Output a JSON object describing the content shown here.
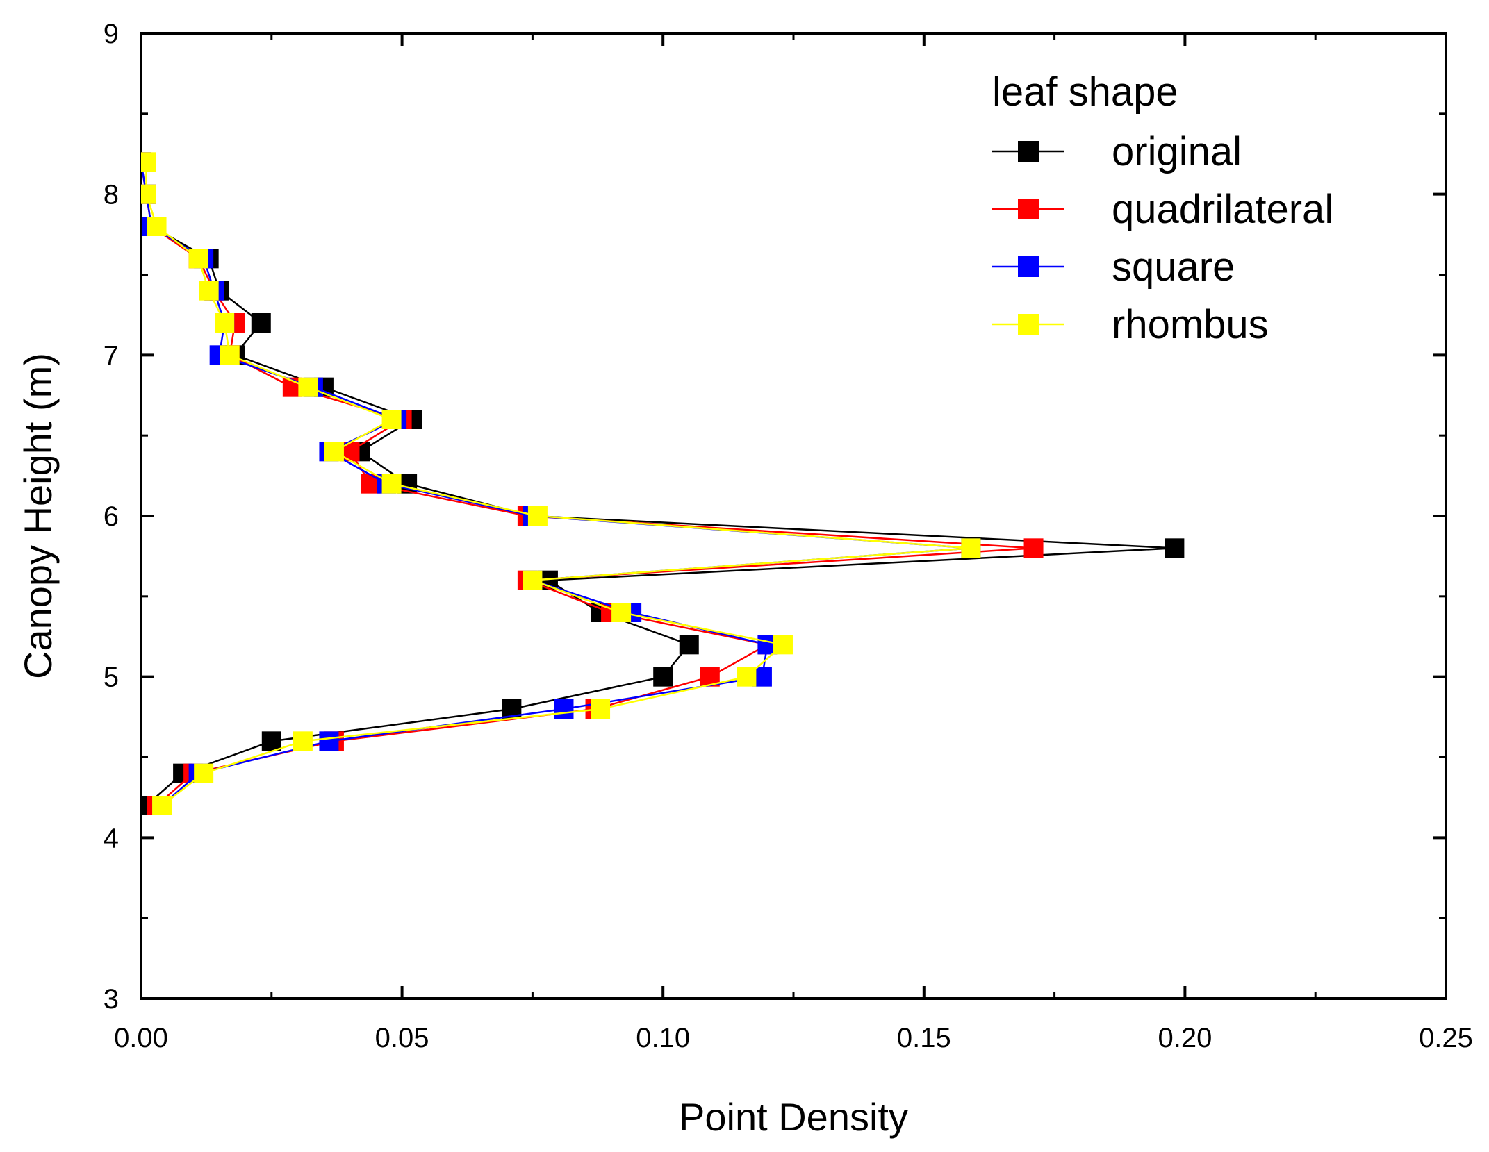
{
  "chart_data": {
    "type": "line",
    "title": "",
    "xlabel": "Point Density",
    "ylabel": "Canopy Height (m)",
    "xlim": [
      0,
      0.25
    ],
    "ylim": [
      3,
      9
    ],
    "xticks": [
      0.0,
      0.05,
      0.1,
      0.15,
      0.2,
      0.25
    ],
    "xtick_labels": [
      "0.00",
      "0.05",
      "0.10",
      "0.15",
      "0.20",
      "0.25"
    ],
    "yticks": [
      3,
      4,
      5,
      6,
      7,
      8,
      9
    ],
    "ytick_labels": [
      "3",
      "4",
      "5",
      "6",
      "7",
      "8",
      "9"
    ],
    "grid": false,
    "legend": {
      "title": "leaf shape",
      "position": "top-right"
    },
    "series": [
      {
        "name": "original",
        "color": "#000000",
        "points": [
          [
            0.001,
            4.2
          ],
          [
            0.008,
            4.4
          ],
          [
            0.025,
            4.6
          ],
          [
            0.071,
            4.8
          ],
          [
            0.1,
            5.0
          ],
          [
            0.105,
            5.2
          ],
          [
            0.088,
            5.4
          ],
          [
            0.078,
            5.6
          ],
          [
            0.198,
            5.8
          ],
          [
            0.075,
            6.0
          ],
          [
            0.051,
            6.2
          ],
          [
            0.042,
            6.4
          ],
          [
            0.052,
            6.6
          ],
          [
            0.035,
            6.8
          ],
          [
            0.018,
            7.0
          ],
          [
            0.023,
            7.2
          ],
          [
            0.015,
            7.4
          ],
          [
            0.013,
            7.6
          ],
          [
            0.002,
            7.8
          ]
        ]
      },
      {
        "name": "quadrilateral",
        "color": "#ff0000",
        "points": [
          [
            0.003,
            4.2
          ],
          [
            0.01,
            4.4
          ],
          [
            0.037,
            4.6
          ],
          [
            0.087,
            4.8
          ],
          [
            0.109,
            5.0
          ],
          [
            0.12,
            5.2
          ],
          [
            0.09,
            5.4
          ],
          [
            0.074,
            5.6
          ],
          [
            0.171,
            5.8
          ],
          [
            0.074,
            6.0
          ],
          [
            0.044,
            6.2
          ],
          [
            0.04,
            6.4
          ],
          [
            0.05,
            6.6
          ],
          [
            0.029,
            6.8
          ],
          [
            0.017,
            7.0
          ],
          [
            0.018,
            7.2
          ],
          [
            0.014,
            7.4
          ],
          [
            0.011,
            7.6
          ],
          [
            0.002,
            7.8
          ],
          [
            0.001,
            8.0
          ],
          [
            0.0,
            8.2
          ]
        ]
      },
      {
        "name": "square",
        "color": "#0000ff",
        "points": [
          [
            0.004,
            4.2
          ],
          [
            0.011,
            4.4
          ],
          [
            0.036,
            4.6
          ],
          [
            0.081,
            4.8
          ],
          [
            0.119,
            5.0
          ],
          [
            0.12,
            5.2
          ],
          [
            0.094,
            5.4
          ],
          [
            0.075,
            5.6
          ],
          [
            0.159,
            5.8
          ],
          [
            0.075,
            6.0
          ],
          [
            0.047,
            6.2
          ],
          [
            0.036,
            6.4
          ],
          [
            0.049,
            6.6
          ],
          [
            0.033,
            6.8
          ],
          [
            0.015,
            7.0
          ],
          [
            0.016,
            7.2
          ],
          [
            0.014,
            7.4
          ],
          [
            0.012,
            7.6
          ],
          [
            0.002,
            7.8
          ],
          [
            0.001,
            8.0
          ],
          [
            0.0,
            8.2
          ]
        ]
      },
      {
        "name": "rhombus",
        "color": "#ffff00",
        "points": [
          [
            0.004,
            4.2
          ],
          [
            0.012,
            4.4
          ],
          [
            0.031,
            4.6
          ],
          [
            0.088,
            4.8
          ],
          [
            0.116,
            5.0
          ],
          [
            0.123,
            5.2
          ],
          [
            0.092,
            5.4
          ],
          [
            0.075,
            5.6
          ],
          [
            0.159,
            5.8
          ],
          [
            0.076,
            6.0
          ],
          [
            0.048,
            6.2
          ],
          [
            0.037,
            6.4
          ],
          [
            0.048,
            6.6
          ],
          [
            0.032,
            6.8
          ],
          [
            0.017,
            7.0
          ],
          [
            0.016,
            7.2
          ],
          [
            0.013,
            7.4
          ],
          [
            0.011,
            7.6
          ],
          [
            0.003,
            7.8
          ],
          [
            0.001,
            8.0
          ],
          [
            0.001,
            8.2
          ]
        ]
      }
    ]
  }
}
